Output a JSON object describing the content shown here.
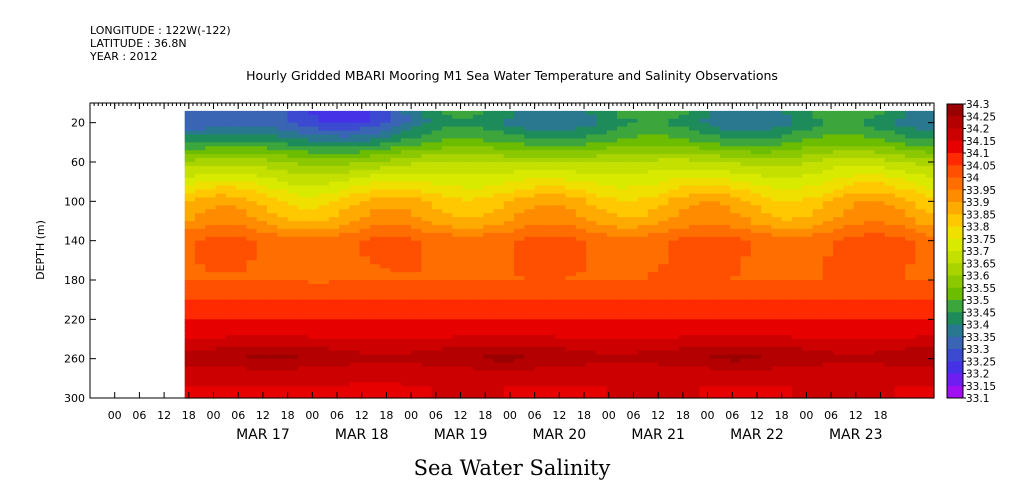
{
  "header": {
    "longitude": "LONGITUDE : 122W(-122)",
    "latitude": "LATITUDE : 36.8N",
    "year": "YEAR : 2012"
  },
  "chart_data": {
    "type": "heatmap",
    "title": "Hourly Gridded MBARI Mooring M1 Sea Water Temperature and Salinity Observations",
    "xlabel": "Sea Water Salinity",
    "ylabel": "DEPTH (m)",
    "x_hour_ticks": [
      "00",
      "06",
      "12",
      "18",
      "00",
      "06",
      "12",
      "18",
      "00",
      "06",
      "12",
      "18",
      "00",
      "06",
      "12",
      "18",
      "00",
      "06",
      "12",
      "18",
      "00",
      "06",
      "12",
      "18",
      "00",
      "06",
      "12",
      "18",
      "00",
      "06",
      "12",
      "18"
    ],
    "x_day_labels": [
      "MAR 17",
      "MAR 18",
      "MAR 19",
      "MAR 20",
      "MAR 21",
      "MAR 22",
      "MAR 23"
    ],
    "x_range_hours": [
      -30,
      175
    ],
    "y_ticks": [
      "20",
      "60",
      "100",
      "140",
      "180",
      "220",
      "260",
      "300"
    ],
    "y_range": [
      0,
      300
    ],
    "y_reversed": true,
    "colorbar_levels": [
      "34.3",
      "34.25",
      "34.2",
      "34.15",
      "34.1",
      "34.05",
      "34",
      "33.95",
      "33.9",
      "33.85",
      "33.8",
      "33.75",
      "33.7",
      "33.65",
      "33.6",
      "33.55",
      "33.5",
      "33.45",
      "33.4",
      "33.35",
      "33.3",
      "33.25",
      "33.2",
      "33.15",
      "33.1"
    ],
    "colorbar_colors": [
      "#9a0000",
      "#b40000",
      "#cc0000",
      "#e60000",
      "#ff2a00",
      "#ff4f00",
      "#ff6e00",
      "#ff8c00",
      "#ffaa00",
      "#ffc800",
      "#f0e000",
      "#d8ea00",
      "#c4e000",
      "#aad400",
      "#8cc800",
      "#6cbc00",
      "#3ca63c",
      "#1e8c5a",
      "#2a7890",
      "#3a64b4",
      "#3c4ad2",
      "#4632e6",
      "#6e1ef0",
      "#a010f0",
      "#d200e6"
    ],
    "profile_depths_m": [
      0,
      20,
      40,
      60,
      80,
      100,
      120,
      140,
      160,
      180,
      200,
      220,
      240,
      260,
      280,
      300
    ],
    "profile_salinity_typical": [
      33.5,
      33.45,
      33.55,
      33.7,
      33.8,
      33.9,
      33.95,
      34.05,
      34.05,
      34.05,
      34.1,
      34.15,
      34.2,
      34.25,
      34.2,
      34.2
    ]
  }
}
